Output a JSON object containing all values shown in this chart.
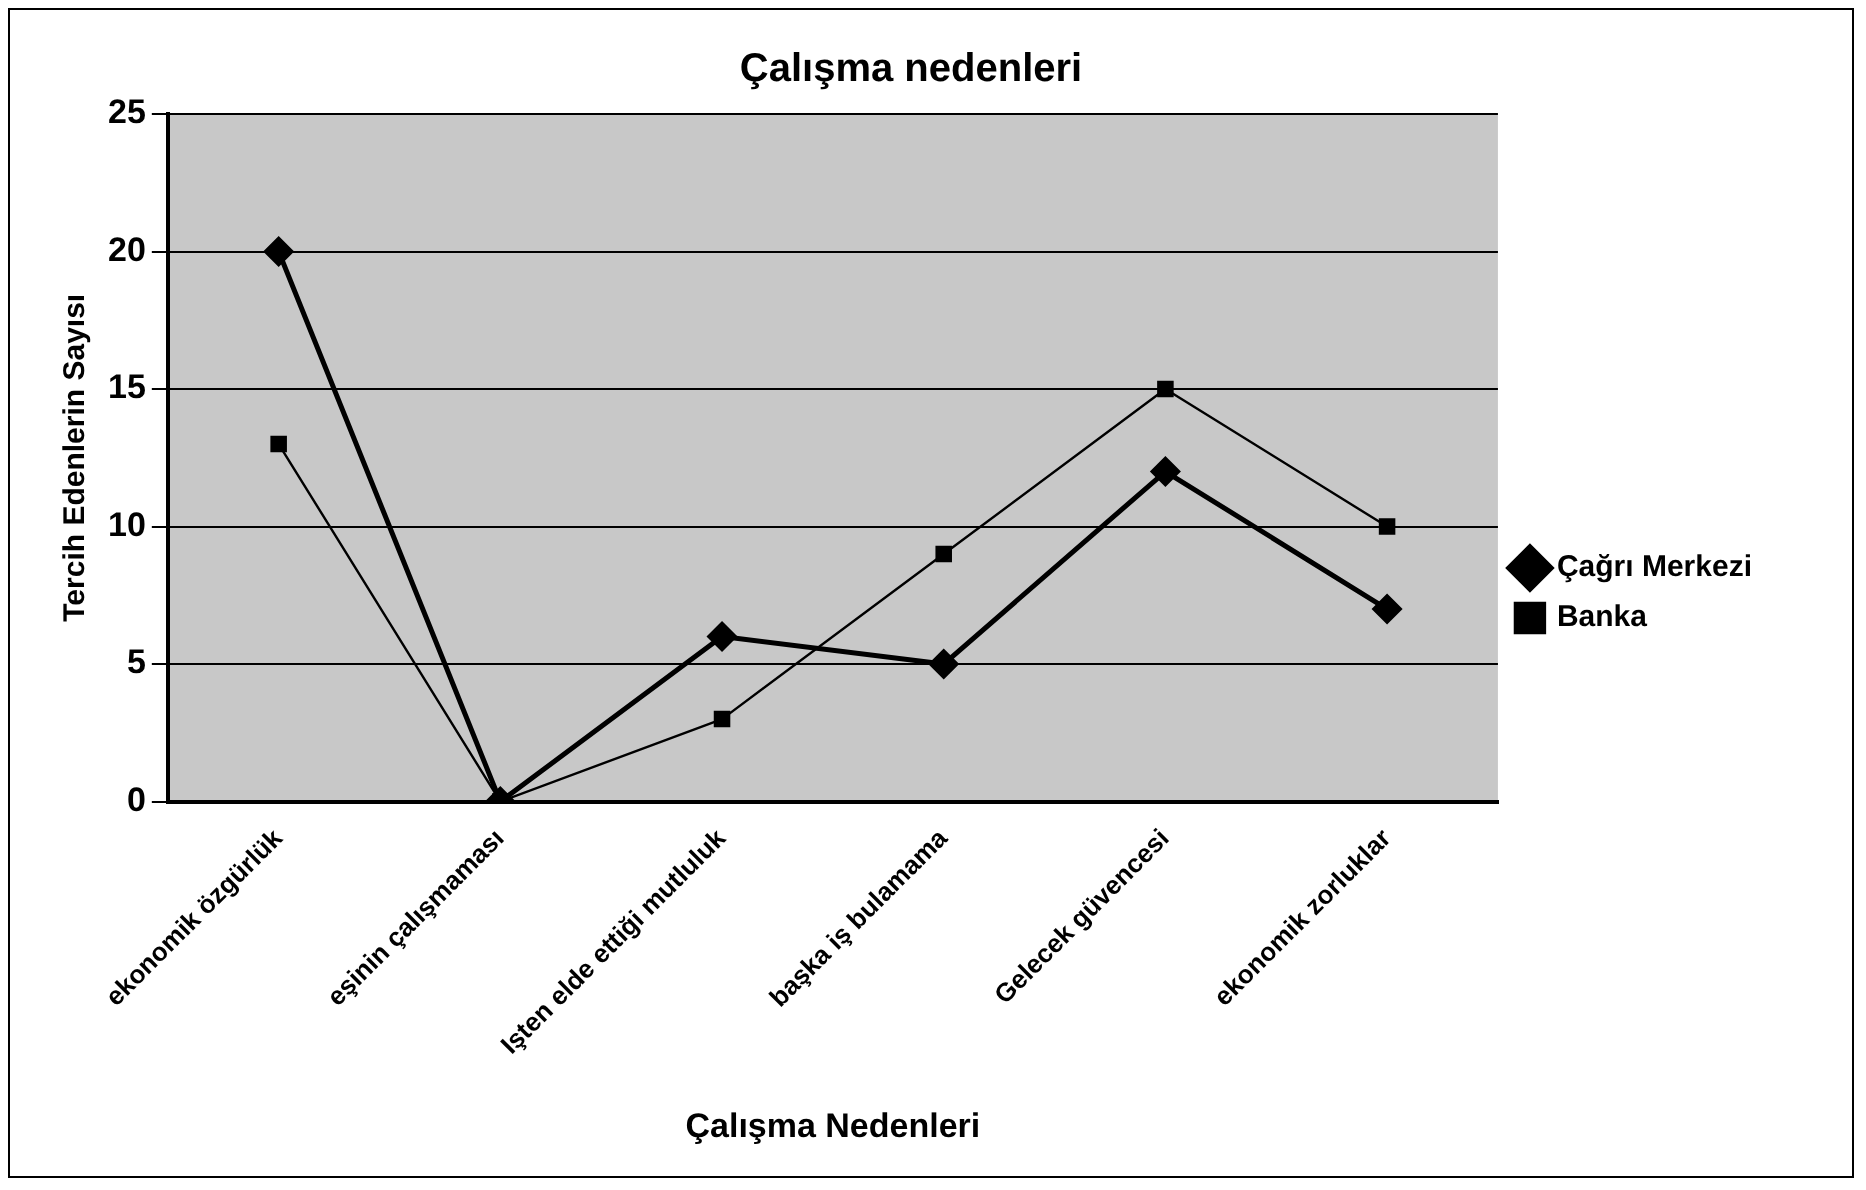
{
  "chart_data": {
    "type": "line",
    "title": "Çalışma nedenleri",
    "xlabel": "Çalışma Nedenleri",
    "ylabel": "Tercih Edenlerin Sayısı",
    "categories": [
      "ekonomik özgürlük",
      "eşinin çalışmaması",
      "Işten elde ettiği mutluluk",
      "başka iş bulamama",
      "Gelecek güvencesi",
      "ekonomik zorluklar"
    ],
    "series": [
      {
        "name": "Çağrı Merkezi",
        "color": "#000000",
        "marker": "diamond",
        "values": [
          20,
          0,
          6,
          5,
          12,
          7
        ]
      },
      {
        "name": "Banka",
        "color": "#000000",
        "marker": "square",
        "values": [
          13,
          0,
          3,
          9,
          15,
          10
        ]
      }
    ],
    "ylim": [
      0,
      25
    ],
    "yticks": [
      0,
      5,
      10,
      15,
      20,
      25
    ],
    "grid": "y",
    "legend": "right"
  }
}
